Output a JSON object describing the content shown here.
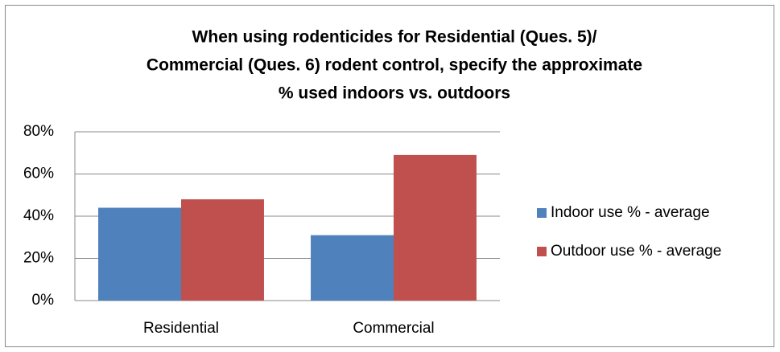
{
  "chart_data": {
    "type": "bar",
    "title": [
      "When using rodenticides for Residential (Ques. 5)/",
      "Commercial (Ques. 6) rodent control, specify the approximate",
      "% used indoors vs. outdoors"
    ],
    "categories": [
      "Residential",
      "Commercial"
    ],
    "series": [
      {
        "name": "Indoor use % - average",
        "color": "#4f81bd",
        "values": [
          44,
          31
        ]
      },
      {
        "name": "Outdoor use % - average",
        "color": "#c0504d",
        "values": [
          48,
          69
        ]
      }
    ],
    "ylim": [
      0,
      80
    ],
    "yticks": [
      {
        "value": 0,
        "label": "0%"
      },
      {
        "value": 20,
        "label": "20%"
      },
      {
        "value": 40,
        "label": "40%"
      },
      {
        "value": 60,
        "label": "60%"
      },
      {
        "value": 80,
        "label": "80%"
      }
    ],
    "grid": true,
    "legend": "right"
  }
}
